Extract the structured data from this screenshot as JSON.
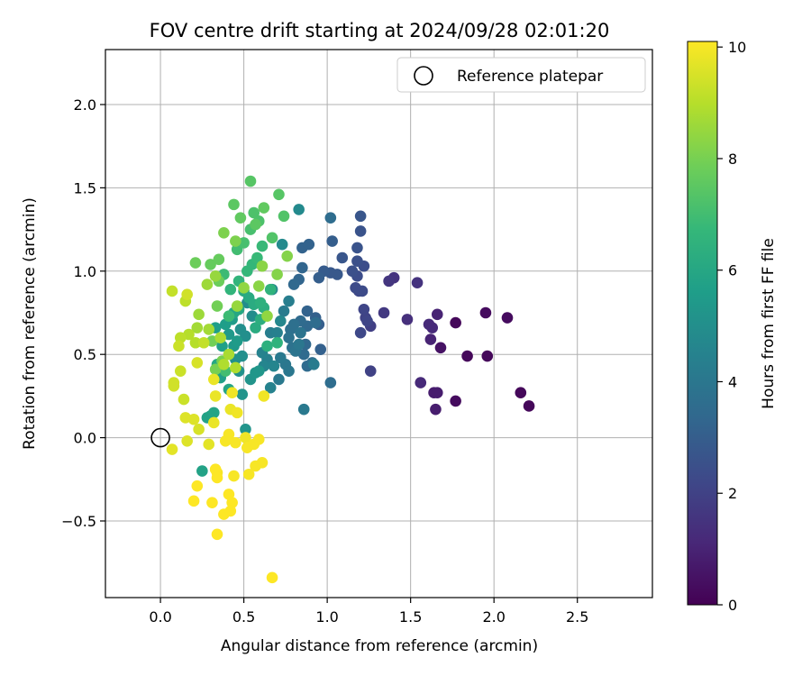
{
  "chart_data": {
    "type": "scatter",
    "title": "FOV centre drift starting at 2024/09/28 02:01:20",
    "xlabel": "Angular distance from reference (arcmin)",
    "ylabel": "Rotation from reference (arcmin)",
    "xlim": [
      -0.33,
      2.95
    ],
    "ylim": [
      -0.96,
      2.33
    ],
    "xticks": [
      0.0,
      0.5,
      1.0,
      1.5,
      2.0,
      2.5
    ],
    "xtick_labels": [
      "0.0",
      "0.5",
      "1.0",
      "1.5",
      "2.0",
      "2.5"
    ],
    "yticks": [
      -0.5,
      0.0,
      0.5,
      1.0,
      1.5,
      2.0
    ],
    "ytick_labels": [
      "−0.5",
      "0.0",
      "0.5",
      "1.0",
      "1.5",
      "2.0"
    ],
    "grid": true,
    "legend": {
      "position": "top-right",
      "entries": [
        "Reference platepar"
      ]
    },
    "reference_point": {
      "x": 0.0,
      "y": 0.0
    },
    "colorbar": {
      "label": "Hours from first FF file",
      "range": [
        0,
        10.1
      ],
      "ticks": [
        0,
        2,
        4,
        6,
        8,
        10
      ],
      "tick_labels": [
        "0",
        "2",
        "4",
        "6",
        "8",
        "10"
      ],
      "colormap": "viridis"
    },
    "colors": {
      "viridis": [
        "#440154",
        "#482878",
        "#3e4989",
        "#31688e",
        "#26828e",
        "#1f9e89",
        "#35b779",
        "#6ece58",
        "#b5de2b",
        "#fde725"
      ],
      "reference_marker": "#000000",
      "grid": "#b0b0b0"
    },
    "points": [
      {
        "x": 1.77,
        "y": 0.69,
        "h": 0.2
      },
      {
        "x": 1.96,
        "y": 0.49,
        "h": 0.2
      },
      {
        "x": 1.84,
        "y": 0.49,
        "h": 0.2
      },
      {
        "x": 2.21,
        "y": 0.19,
        "h": 0.2
      },
      {
        "x": 2.16,
        "y": 0.27,
        "h": 0.2
      },
      {
        "x": 1.77,
        "y": 0.22,
        "h": 0.3
      },
      {
        "x": 2.08,
        "y": 0.72,
        "h": 0.3
      },
      {
        "x": 1.95,
        "y": 0.75,
        "h": 0.3
      },
      {
        "x": 1.68,
        "y": 0.54,
        "h": 0.5
      },
      {
        "x": 1.65,
        "y": 0.17,
        "h": 0.8
      },
      {
        "x": 1.64,
        "y": 0.27,
        "h": 0.8
      },
      {
        "x": 1.66,
        "y": 0.27,
        "h": 0.8
      },
      {
        "x": 1.62,
        "y": 0.59,
        "h": 1.0
      },
      {
        "x": 1.66,
        "y": 0.74,
        "h": 1.0
      },
      {
        "x": 1.61,
        "y": 0.68,
        "h": 1.2
      },
      {
        "x": 1.56,
        "y": 0.33,
        "h": 1.2
      },
      {
        "x": 1.63,
        "y": 0.66,
        "h": 1.2
      },
      {
        "x": 1.48,
        "y": 0.71,
        "h": 1.4
      },
      {
        "x": 1.54,
        "y": 0.93,
        "h": 1.5
      },
      {
        "x": 1.4,
        "y": 0.96,
        "h": 1.5
      },
      {
        "x": 1.37,
        "y": 0.94,
        "h": 1.6
      },
      {
        "x": 1.34,
        "y": 0.75,
        "h": 1.7
      },
      {
        "x": 1.26,
        "y": 0.67,
        "h": 1.9
      },
      {
        "x": 1.26,
        "y": 0.4,
        "h": 2.0
      },
      {
        "x": 1.23,
        "y": 0.72,
        "h": 2.0
      },
      {
        "x": 1.22,
        "y": 0.77,
        "h": 2.1
      },
      {
        "x": 1.24,
        "y": 0.7,
        "h": 2.1
      },
      {
        "x": 1.2,
        "y": 0.63,
        "h": 2.2
      },
      {
        "x": 1.19,
        "y": 0.88,
        "h": 2.2
      },
      {
        "x": 1.21,
        "y": 0.88,
        "h": 2.3
      },
      {
        "x": 1.17,
        "y": 0.9,
        "h": 2.3
      },
      {
        "x": 1.18,
        "y": 0.97,
        "h": 2.4
      },
      {
        "x": 1.22,
        "y": 1.03,
        "h": 2.4
      },
      {
        "x": 1.18,
        "y": 1.06,
        "h": 2.5
      },
      {
        "x": 1.15,
        "y": 1.0,
        "h": 2.5
      },
      {
        "x": 1.18,
        "y": 1.14,
        "h": 2.6
      },
      {
        "x": 1.2,
        "y": 1.24,
        "h": 2.6
      },
      {
        "x": 1.2,
        "y": 1.33,
        "h": 2.7
      },
      {
        "x": 1.09,
        "y": 1.08,
        "h": 2.7
      },
      {
        "x": 1.06,
        "y": 0.98,
        "h": 2.8
      },
      {
        "x": 1.02,
        "y": 0.99,
        "h": 2.8
      },
      {
        "x": 0.98,
        "y": 1.0,
        "h": 2.9
      },
      {
        "x": 0.95,
        "y": 0.96,
        "h": 3.0
      },
      {
        "x": 1.03,
        "y": 1.18,
        "h": 3.0
      },
      {
        "x": 0.95,
        "y": 0.68,
        "h": 3.0
      },
      {
        "x": 0.93,
        "y": 0.72,
        "h": 3.1
      },
      {
        "x": 0.96,
        "y": 0.53,
        "h": 3.1
      },
      {
        "x": 0.88,
        "y": 0.76,
        "h": 3.2
      },
      {
        "x": 0.85,
        "y": 1.14,
        "h": 3.2
      },
      {
        "x": 0.89,
        "y": 1.16,
        "h": 3.2
      },
      {
        "x": 0.85,
        "y": 1.02,
        "h": 3.3
      },
      {
        "x": 0.83,
        "y": 0.95,
        "h": 3.3
      },
      {
        "x": 0.8,
        "y": 0.92,
        "h": 3.4
      },
      {
        "x": 0.88,
        "y": 0.67,
        "h": 3.4
      },
      {
        "x": 0.87,
        "y": 0.56,
        "h": 3.4
      },
      {
        "x": 0.86,
        "y": 0.5,
        "h": 3.5
      },
      {
        "x": 0.84,
        "y": 0.7,
        "h": 3.5
      },
      {
        "x": 0.88,
        "y": 0.43,
        "h": 3.5
      },
      {
        "x": 0.91,
        "y": 0.45,
        "h": 3.6
      },
      {
        "x": 1.02,
        "y": 0.33,
        "h": 3.6
      },
      {
        "x": 1.02,
        "y": 1.32,
        "h": 3.6
      },
      {
        "x": 0.93,
        "y": 0.69,
        "h": 3.6
      },
      {
        "x": 0.78,
        "y": 0.65,
        "h": 3.7
      },
      {
        "x": 0.8,
        "y": 0.68,
        "h": 3.7
      },
      {
        "x": 0.77,
        "y": 0.6,
        "h": 3.8
      },
      {
        "x": 0.79,
        "y": 0.54,
        "h": 3.8
      },
      {
        "x": 0.84,
        "y": 0.63,
        "h": 3.9
      },
      {
        "x": 0.81,
        "y": 0.52,
        "h": 3.9
      },
      {
        "x": 0.83,
        "y": 0.56,
        "h": 4.0
      },
      {
        "x": 0.75,
        "y": 0.44,
        "h": 4.0
      },
      {
        "x": 0.77,
        "y": 0.4,
        "h": 4.0
      },
      {
        "x": 0.72,
        "y": 0.48,
        "h": 4.1
      },
      {
        "x": 0.71,
        "y": 0.35,
        "h": 4.1
      },
      {
        "x": 0.86,
        "y": 0.17,
        "h": 4.1
      },
      {
        "x": 0.92,
        "y": 0.44,
        "h": 4.2
      },
      {
        "x": 0.74,
        "y": 0.76,
        "h": 4.2
      },
      {
        "x": 0.77,
        "y": 0.82,
        "h": 4.3
      },
      {
        "x": 0.66,
        "y": 0.63,
        "h": 4.3
      },
      {
        "x": 0.7,
        "y": 0.63,
        "h": 4.4
      },
      {
        "x": 0.64,
        "y": 0.47,
        "h": 4.4
      },
      {
        "x": 0.66,
        "y": 0.3,
        "h": 4.5
      },
      {
        "x": 0.61,
        "y": 0.51,
        "h": 4.5
      },
      {
        "x": 0.62,
        "y": 0.43,
        "h": 4.6
      },
      {
        "x": 0.68,
        "y": 0.43,
        "h": 4.6
      },
      {
        "x": 0.67,
        "y": 0.89,
        "h": 4.7
      },
      {
        "x": 0.72,
        "y": 0.7,
        "h": 4.7
      },
      {
        "x": 0.83,
        "y": 1.37,
        "h": 4.8
      },
      {
        "x": 0.73,
        "y": 1.16,
        "h": 4.8
      },
      {
        "x": 0.52,
        "y": 0.81,
        "h": 4.9
      },
      {
        "x": 0.55,
        "y": 0.73,
        "h": 4.9
      },
      {
        "x": 0.48,
        "y": 0.65,
        "h": 5.0
      },
      {
        "x": 0.51,
        "y": 0.61,
        "h": 5.0
      },
      {
        "x": 0.49,
        "y": 0.49,
        "h": 5.0
      },
      {
        "x": 0.45,
        "y": 0.47,
        "h": 5.1
      },
      {
        "x": 0.47,
        "y": 0.4,
        "h": 5.1
      },
      {
        "x": 0.49,
        "y": 0.26,
        "h": 5.2
      },
      {
        "x": 0.51,
        "y": 0.05,
        "h": 5.2
      },
      {
        "x": 0.54,
        "y": 0.35,
        "h": 5.2
      },
      {
        "x": 0.57,
        "y": 0.39,
        "h": 5.3
      },
      {
        "x": 0.59,
        "y": 0.4,
        "h": 5.3
      },
      {
        "x": 0.41,
        "y": 0.62,
        "h": 5.4
      },
      {
        "x": 0.44,
        "y": 0.55,
        "h": 5.4
      },
      {
        "x": 0.46,
        "y": 0.58,
        "h": 5.5
      },
      {
        "x": 0.43,
        "y": 0.71,
        "h": 5.5
      },
      {
        "x": 0.39,
        "y": 0.68,
        "h": 5.6
      },
      {
        "x": 0.33,
        "y": 0.66,
        "h": 5.6
      },
      {
        "x": 0.37,
        "y": 0.55,
        "h": 5.7
      },
      {
        "x": 0.36,
        "y": 0.36,
        "h": 5.7
      },
      {
        "x": 0.3,
        "y": 0.13,
        "h": 5.8
      },
      {
        "x": 0.25,
        "y": -0.2,
        "h": 5.8
      },
      {
        "x": 0.28,
        "y": 0.12,
        "h": 5.8
      },
      {
        "x": 0.32,
        "y": 0.15,
        "h": 5.9
      },
      {
        "x": 0.41,
        "y": 0.29,
        "h": 5.9
      },
      {
        "x": 0.34,
        "y": 0.44,
        "h": 6.0
      },
      {
        "x": 0.44,
        "y": 0.75,
        "h": 6.0
      },
      {
        "x": 0.47,
        "y": 0.77,
        "h": 6.0
      },
      {
        "x": 0.5,
        "y": 0.88,
        "h": 6.1
      },
      {
        "x": 0.53,
        "y": 0.84,
        "h": 6.1
      },
      {
        "x": 0.56,
        "y": 0.8,
        "h": 6.2
      },
      {
        "x": 0.57,
        "y": 0.66,
        "h": 6.2
      },
      {
        "x": 0.6,
        "y": 0.71,
        "h": 6.3
      },
      {
        "x": 0.62,
        "y": 0.78,
        "h": 6.3
      },
      {
        "x": 0.6,
        "y": 0.81,
        "h": 6.4
      },
      {
        "x": 0.64,
        "y": 0.55,
        "h": 6.4
      },
      {
        "x": 0.7,
        "y": 0.57,
        "h": 6.5
      },
      {
        "x": 0.66,
        "y": 0.89,
        "h": 6.5
      },
      {
        "x": 0.42,
        "y": 0.89,
        "h": 6.6
      },
      {
        "x": 0.47,
        "y": 0.94,
        "h": 6.6
      },
      {
        "x": 0.52,
        "y": 1.0,
        "h": 6.7
      },
      {
        "x": 0.55,
        "y": 1.04,
        "h": 6.7
      },
      {
        "x": 0.58,
        "y": 1.08,
        "h": 6.8
      },
      {
        "x": 0.61,
        "y": 1.15,
        "h": 6.8
      },
      {
        "x": 0.38,
        "y": 0.98,
        "h": 6.9
      },
      {
        "x": 0.41,
        "y": 0.73,
        "h": 6.9
      },
      {
        "x": 0.39,
        "y": 0.4,
        "h": 7.0
      },
      {
        "x": 0.46,
        "y": 1.13,
        "h": 7.0
      },
      {
        "x": 0.5,
        "y": 1.17,
        "h": 7.1
      },
      {
        "x": 0.54,
        "y": 1.25,
        "h": 7.1
      },
      {
        "x": 0.56,
        "y": 1.35,
        "h": 7.2
      },
      {
        "x": 0.59,
        "y": 1.3,
        "h": 7.2
      },
      {
        "x": 0.67,
        "y": 1.2,
        "h": 7.3
      },
      {
        "x": 0.74,
        "y": 1.33,
        "h": 7.3
      },
      {
        "x": 0.71,
        "y": 1.46,
        "h": 7.4
      },
      {
        "x": 0.54,
        "y": 1.54,
        "h": 7.4
      },
      {
        "x": 0.44,
        "y": 1.4,
        "h": 7.5
      },
      {
        "x": 0.57,
        "y": 1.28,
        "h": 7.5
      },
      {
        "x": 0.62,
        "y": 1.38,
        "h": 7.6
      },
      {
        "x": 0.48,
        "y": 1.32,
        "h": 7.6
      },
      {
        "x": 0.35,
        "y": 1.07,
        "h": 7.7
      },
      {
        "x": 0.3,
        "y": 1.04,
        "h": 7.7
      },
      {
        "x": 0.21,
        "y": 1.05,
        "h": 7.8
      },
      {
        "x": 0.35,
        "y": 0.94,
        "h": 7.8
      },
      {
        "x": 0.34,
        "y": 0.79,
        "h": 7.9
      },
      {
        "x": 0.31,
        "y": 0.58,
        "h": 7.9
      },
      {
        "x": 0.33,
        "y": 0.41,
        "h": 8.0
      },
      {
        "x": 0.37,
        "y": 0.46,
        "h": 8.0
      },
      {
        "x": 0.45,
        "y": 1.18,
        "h": 8.1
      },
      {
        "x": 0.38,
        "y": 1.23,
        "h": 8.1
      },
      {
        "x": 0.76,
        "y": 1.09,
        "h": 8.2
      },
      {
        "x": 0.7,
        "y": 0.98,
        "h": 8.2
      },
      {
        "x": 0.61,
        "y": 1.03,
        "h": 8.3
      },
      {
        "x": 0.59,
        "y": 0.91,
        "h": 8.3
      },
      {
        "x": 0.64,
        "y": 0.73,
        "h": 8.4
      },
      {
        "x": 0.5,
        "y": 0.9,
        "h": 8.4
      },
      {
        "x": 0.46,
        "y": 0.79,
        "h": 8.5
      },
      {
        "x": 0.33,
        "y": 0.97,
        "h": 8.5
      },
      {
        "x": 0.28,
        "y": 0.92,
        "h": 8.6
      },
      {
        "x": 0.23,
        "y": 0.74,
        "h": 8.6
      },
      {
        "x": 0.22,
        "y": 0.66,
        "h": 8.7
      },
      {
        "x": 0.29,
        "y": 0.65,
        "h": 8.7
      },
      {
        "x": 0.36,
        "y": 0.6,
        "h": 8.8
      },
      {
        "x": 0.41,
        "y": 0.5,
        "h": 8.8
      },
      {
        "x": 0.38,
        "y": 0.44,
        "h": 8.9
      },
      {
        "x": 0.45,
        "y": 0.42,
        "h": 8.9
      },
      {
        "x": 0.21,
        "y": 0.57,
        "h": 9.0
      },
      {
        "x": 0.17,
        "y": 0.62,
        "h": 9.0
      },
      {
        "x": 0.12,
        "y": 0.6,
        "h": 9.1
      },
      {
        "x": 0.15,
        "y": 0.82,
        "h": 9.1
      },
      {
        "x": 0.07,
        "y": 0.88,
        "h": 9.2
      },
      {
        "x": 0.26,
        "y": 0.57,
        "h": 9.2
      },
      {
        "x": 0.12,
        "y": 0.4,
        "h": 9.3
      },
      {
        "x": 0.11,
        "y": 0.55,
        "h": 9.3
      },
      {
        "x": 0.14,
        "y": 0.23,
        "h": 9.3
      },
      {
        "x": 0.08,
        "y": 0.33,
        "h": 9.4
      },
      {
        "x": 0.08,
        "y": 0.31,
        "h": 9.4
      },
      {
        "x": 0.16,
        "y": 0.86,
        "h": 9.4
      },
      {
        "x": 0.22,
        "y": 0.45,
        "h": 9.5
      },
      {
        "x": 0.23,
        "y": 0.05,
        "h": 9.5
      },
      {
        "x": 0.15,
        "y": 0.12,
        "h": 9.6
      },
      {
        "x": 0.2,
        "y": 0.11,
        "h": 9.6
      },
      {
        "x": 0.16,
        "y": -0.02,
        "h": 9.6
      },
      {
        "x": 0.07,
        "y": -0.07,
        "h": 9.7
      },
      {
        "x": 0.29,
        "y": -0.04,
        "h": 9.7
      },
      {
        "x": 0.32,
        "y": 0.09,
        "h": 9.8
      },
      {
        "x": 0.32,
        "y": 0.35,
        "h": 9.8
      },
      {
        "x": 0.33,
        "y": 0.25,
        "h": 9.8
      },
      {
        "x": 0.42,
        "y": 0.17,
        "h": 9.8
      },
      {
        "x": 0.46,
        "y": 0.15,
        "h": 9.9
      },
      {
        "x": 0.43,
        "y": 0.27,
        "h": 9.9
      },
      {
        "x": 0.62,
        "y": 0.25,
        "h": 9.9
      },
      {
        "x": 0.51,
        "y": 0.0,
        "h": 9.9
      },
      {
        "x": 0.41,
        "y": 0.02,
        "h": 10.0
      },
      {
        "x": 0.39,
        "y": -0.02,
        "h": 10.0
      },
      {
        "x": 0.45,
        "y": -0.03,
        "h": 10.0
      },
      {
        "x": 0.52,
        "y": -0.06,
        "h": 10.0
      },
      {
        "x": 0.56,
        "y": -0.04,
        "h": 10.0
      },
      {
        "x": 0.59,
        "y": -0.01,
        "h": 10.0
      },
      {
        "x": 0.57,
        "y": -0.17,
        "h": 10.0
      },
      {
        "x": 0.61,
        "y": -0.15,
        "h": 10.0
      },
      {
        "x": 0.53,
        "y": -0.22,
        "h": 10.0
      },
      {
        "x": 0.44,
        "y": -0.23,
        "h": 10.0
      },
      {
        "x": 0.34,
        "y": -0.21,
        "h": 10.0
      },
      {
        "x": 0.31,
        "y": -0.39,
        "h": 10.1
      },
      {
        "x": 0.33,
        "y": -0.19,
        "h": 10.1
      },
      {
        "x": 0.34,
        "y": -0.24,
        "h": 10.1
      },
      {
        "x": 0.41,
        "y": -0.34,
        "h": 10.1
      },
      {
        "x": 0.43,
        "y": -0.39,
        "h": 10.1
      },
      {
        "x": 0.42,
        "y": -0.44,
        "h": 10.1
      },
      {
        "x": 0.38,
        "y": -0.46,
        "h": 10.1
      },
      {
        "x": 0.34,
        "y": -0.58,
        "h": 10.1
      },
      {
        "x": 0.22,
        "y": -0.29,
        "h": 10.1
      },
      {
        "x": 0.2,
        "y": -0.38,
        "h": 10.1
      },
      {
        "x": 0.67,
        "y": -0.84,
        "h": 10.1
      }
    ]
  }
}
